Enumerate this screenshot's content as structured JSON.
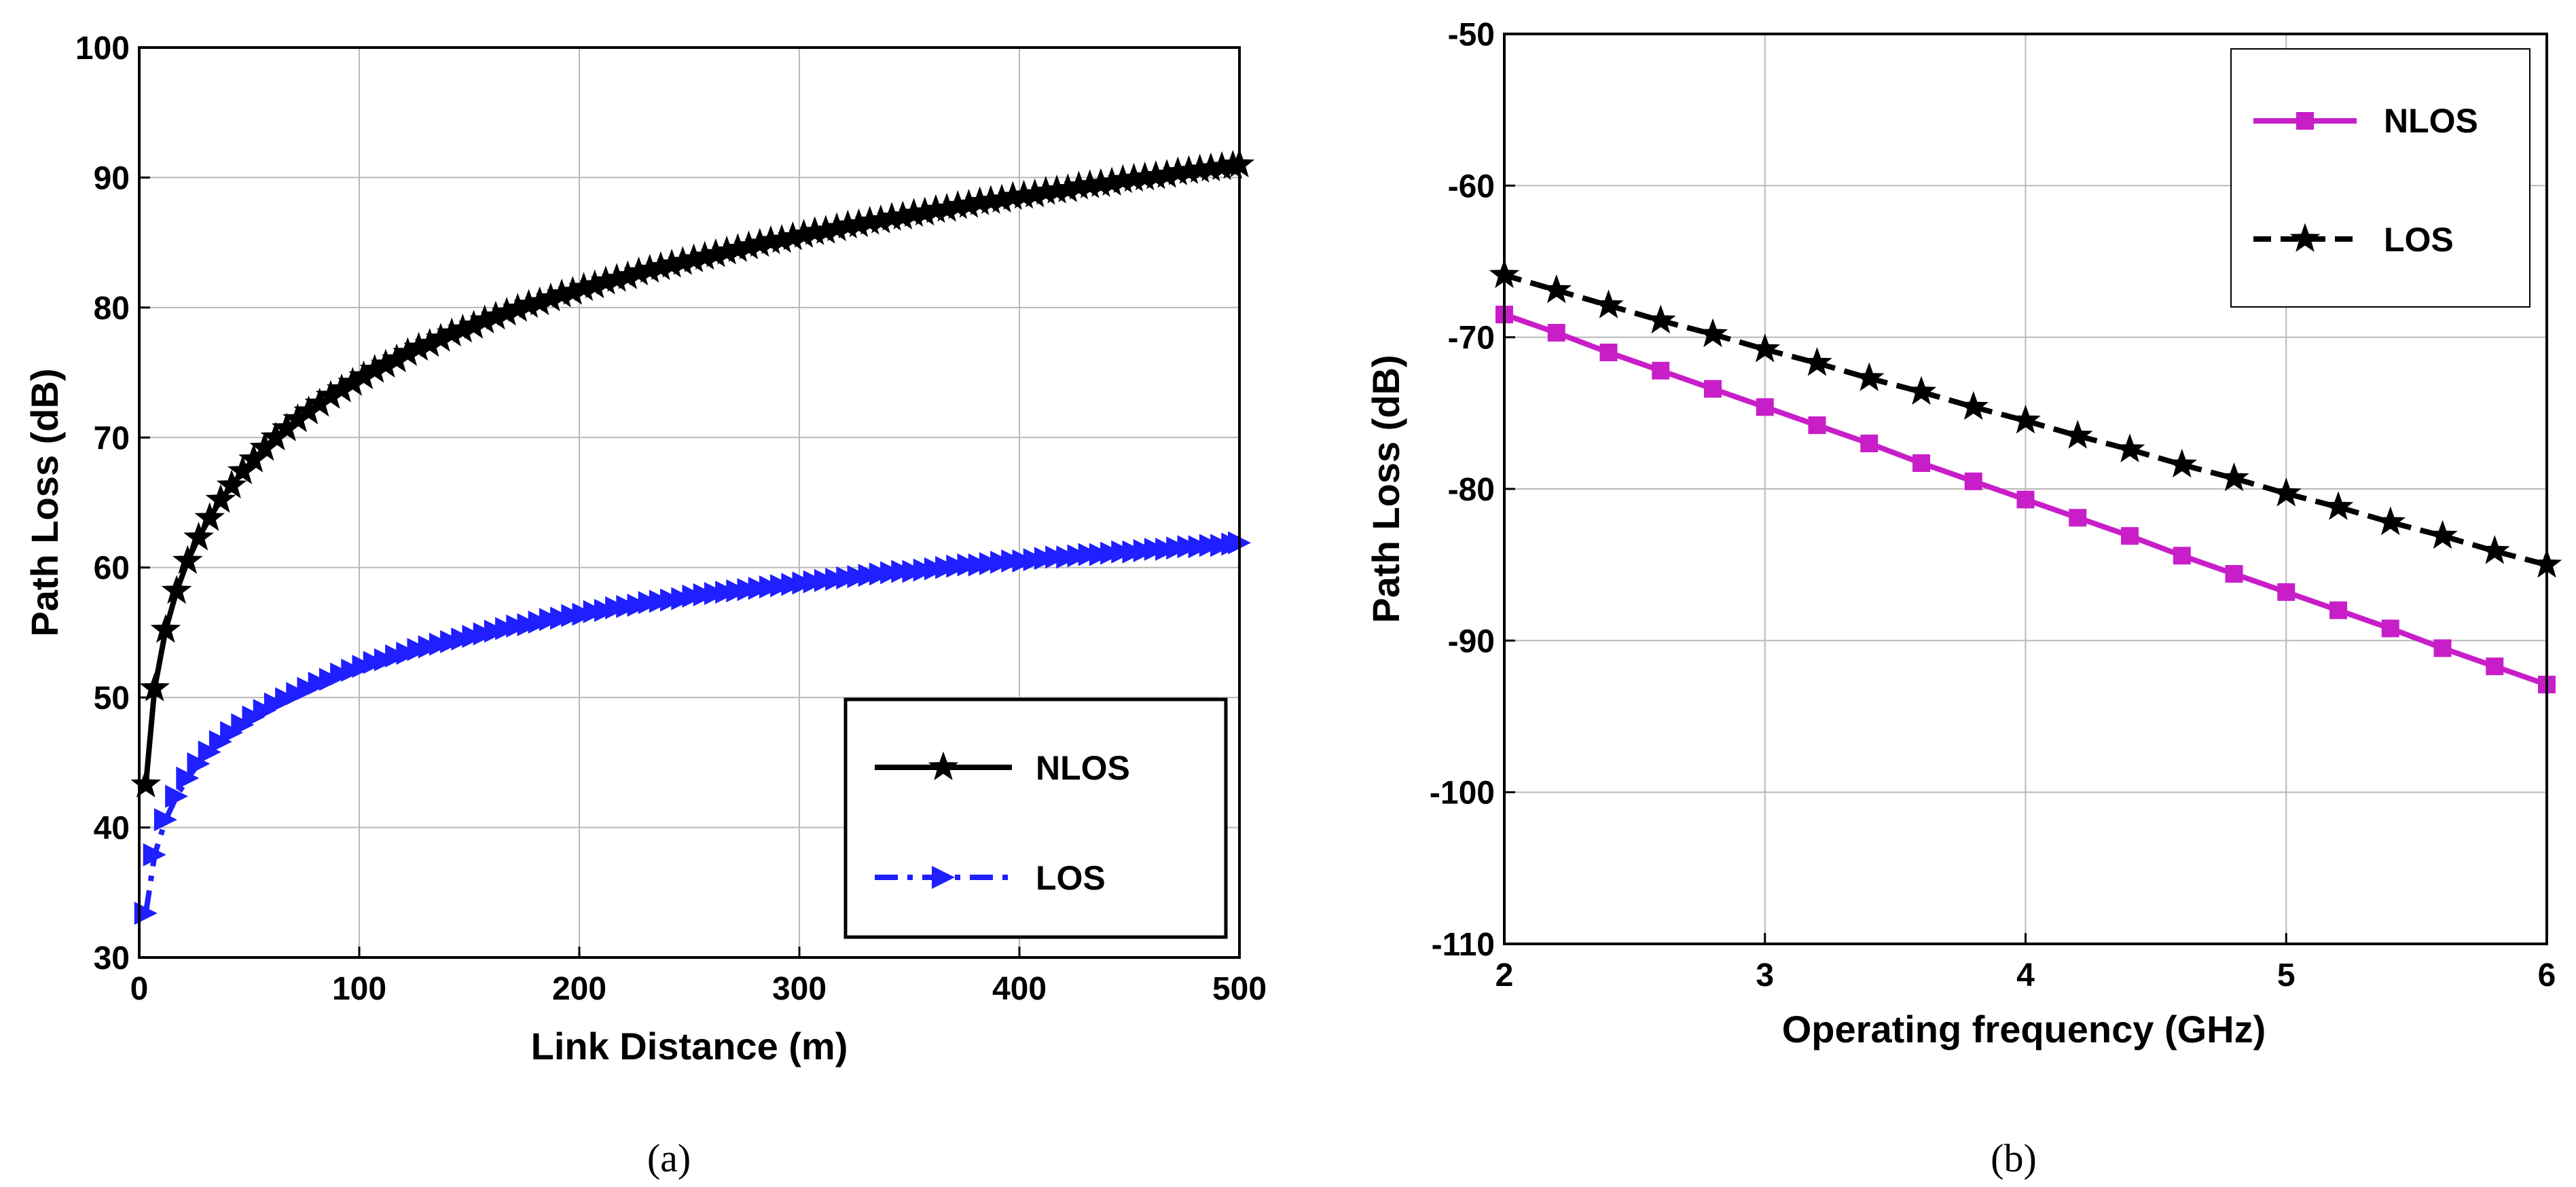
{
  "chart_data": [
    {
      "type": "line",
      "caption": "(a)",
      "xlabel": "Link Distance (m)",
      "ylabel": "Path Loss (dB)",
      "xlim": [
        0,
        500
      ],
      "ylim": [
        30,
        100
      ],
      "xticks": [
        "0",
        "100",
        "200",
        "300",
        "400",
        "500"
      ],
      "yticks": [
        "30",
        "40",
        "50",
        "60",
        "70",
        "80",
        "90",
        "100"
      ],
      "grid": true,
      "legend": {
        "position": "bottom-right",
        "entries": [
          "NLOS",
          "LOS"
        ]
      },
      "series": [
        {
          "name": "NLOS",
          "color": "#000000",
          "marker": "star",
          "line_style": "solid",
          "x": [
            3,
            7,
            12,
            17,
            22,
            27,
            32,
            37,
            42,
            47,
            52,
            57,
            62,
            67,
            72,
            77,
            82,
            87,
            92,
            97,
            102,
            107,
            112,
            117,
            122,
            127,
            132,
            137,
            142,
            147,
            152,
            157,
            162,
            167,
            172,
            177,
            182,
            187,
            192,
            197,
            202,
            207,
            212,
            217,
            222,
            227,
            232,
            237,
            242,
            247,
            252,
            257,
            262,
            267,
            272,
            277,
            282,
            287,
            292,
            297,
            302,
            307,
            312,
            317,
            322,
            327,
            332,
            337,
            342,
            347,
            352,
            357,
            362,
            367,
            372,
            377,
            382,
            387,
            392,
            397,
            402,
            407,
            412,
            417,
            422,
            427,
            432,
            437,
            442,
            447,
            452,
            457,
            462,
            467,
            472,
            477,
            482,
            487,
            492,
            497,
            500
          ],
          "y": [
            43.3,
            50.7,
            55.2,
            58.2,
            60.5,
            62.3,
            63.8,
            65.2,
            66.3,
            67.4,
            68.3,
            69.2,
            70.0,
            70.7,
            71.4,
            72.0,
            72.6,
            73.2,
            73.7,
            74.2,
            74.7,
            75.2,
            75.6,
            76.0,
            76.5,
            76.9,
            77.2,
            77.6,
            78.0,
            78.3,
            78.6,
            79.0,
            79.3,
            79.6,
            79.9,
            80.2,
            80.4,
            80.7,
            81.0,
            81.2,
            81.5,
            81.7,
            82.0,
            82.2,
            82.4,
            82.7,
            82.9,
            83.1,
            83.3,
            83.5,
            83.7,
            83.9,
            84.1,
            84.3,
            84.5,
            84.7,
            84.9,
            85.1,
            85.2,
            85.4,
            85.6,
            85.8,
            85.9,
            86.1,
            86.3,
            86.4,
            86.6,
            86.7,
            86.9,
            87.0,
            87.2,
            87.3,
            87.5,
            87.6,
            87.8,
            87.9,
            88.1,
            88.2,
            88.3,
            88.5,
            88.6,
            88.7,
            88.9,
            89.0,
            89.1,
            89.3,
            89.4,
            89.5,
            89.6,
            89.8,
            89.9,
            90.0,
            90.1,
            90.2,
            90.4,
            90.5,
            90.6,
            90.7,
            90.8,
            90.9,
            91.0
          ]
        },
        {
          "name": "LOS",
          "color": "#1f1fff",
          "marker": "triangle-right",
          "line_style": "dash-dot",
          "x": [
            3,
            7,
            12,
            17,
            22,
            27,
            32,
            37,
            42,
            47,
            52,
            57,
            62,
            67,
            72,
            77,
            82,
            87,
            92,
            97,
            102,
            107,
            112,
            117,
            122,
            127,
            132,
            137,
            142,
            147,
            152,
            157,
            162,
            167,
            172,
            177,
            182,
            187,
            192,
            197,
            202,
            207,
            212,
            217,
            222,
            227,
            232,
            237,
            242,
            247,
            252,
            257,
            262,
            267,
            272,
            277,
            282,
            287,
            292,
            297,
            302,
            307,
            312,
            317,
            322,
            327,
            332,
            337,
            342,
            347,
            352,
            357,
            362,
            367,
            372,
            377,
            382,
            387,
            392,
            397,
            402,
            407,
            412,
            417,
            422,
            427,
            432,
            437,
            442,
            447,
            452,
            457,
            462,
            467,
            472,
            477,
            482,
            487,
            492,
            497,
            500
          ],
          "y": [
            33.4,
            37.9,
            40.6,
            42.4,
            43.8,
            44.9,
            45.8,
            46.6,
            47.3,
            47.9,
            48.5,
            49.0,
            49.5,
            49.9,
            50.3,
            50.7,
            51.1,
            51.4,
            51.8,
            52.1,
            52.4,
            52.7,
            52.9,
            53.2,
            53.4,
            53.7,
            53.9,
            54.1,
            54.3,
            54.5,
            54.7,
            54.9,
            55.1,
            55.3,
            55.5,
            55.6,
            55.8,
            56.0,
            56.1,
            56.3,
            56.4,
            56.6,
            56.7,
            56.9,
            57.0,
            57.1,
            57.3,
            57.4,
            57.5,
            57.6,
            57.8,
            57.9,
            58.0,
            58.1,
            58.2,
            58.3,
            58.4,
            58.5,
            58.6,
            58.7,
            58.8,
            58.9,
            59.0,
            59.1,
            59.2,
            59.3,
            59.4,
            59.5,
            59.6,
            59.7,
            59.7,
            59.8,
            59.9,
            60.0,
            60.1,
            60.2,
            60.2,
            60.3,
            60.4,
            60.5,
            60.5,
            60.6,
            60.7,
            60.8,
            60.8,
            60.9,
            61.0,
            61.0,
            61.1,
            61.2,
            61.2,
            61.3,
            61.4,
            61.4,
            61.5,
            61.6,
            61.6,
            61.7,
            61.7,
            61.8,
            61.9
          ]
        }
      ]
    },
    {
      "type": "line",
      "caption": "(b)",
      "xlabel": "Operating frequency (GHz)",
      "ylabel": "Path Loss (dB)",
      "xlim": [
        2,
        6
      ],
      "ylim": [
        -110,
        -50
      ],
      "xticks": [
        "2",
        "3",
        "4",
        "5",
        "6"
      ],
      "yticks": [
        "-110",
        "-100",
        "-90",
        "-80",
        "-70",
        "-60",
        "-50"
      ],
      "grid": true,
      "legend": {
        "position": "top-right",
        "entries": [
          "NLOS",
          "LOS"
        ]
      },
      "series": [
        {
          "name": "NLOS",
          "color": "#c81ec8",
          "marker": "square",
          "line_style": "solid",
          "x": [
            2.0,
            2.2,
            2.4,
            2.6,
            2.8,
            3.0,
            3.2,
            3.4,
            3.6,
            3.8,
            4.0,
            4.2,
            4.4,
            4.6,
            4.8,
            5.0,
            5.2,
            5.4,
            5.6,
            5.8,
            6.0
          ],
          "y": [
            -68.5,
            -69.7,
            -71.0,
            -72.2,
            -73.4,
            -74.6,
            -75.8,
            -77.0,
            -78.3,
            -79.5,
            -80.7,
            -81.9,
            -83.1,
            -84.4,
            -85.6,
            -86.8,
            -88.0,
            -89.2,
            -90.5,
            -91.7,
            -92.9
          ]
        },
        {
          "name": "LOS",
          "color": "#000000",
          "marker": "star",
          "line_style": "dashed",
          "x": [
            2.0,
            2.2,
            2.4,
            2.6,
            2.8,
            3.0,
            3.2,
            3.4,
            3.6,
            3.8,
            4.0,
            4.2,
            4.4,
            4.6,
            4.8,
            5.0,
            5.2,
            5.4,
            5.6,
            5.8,
            6.0
          ],
          "y": [
            -65.9,
            -66.9,
            -67.9,
            -68.9,
            -69.8,
            -70.8,
            -71.7,
            -72.7,
            -73.6,
            -74.6,
            -75.5,
            -76.5,
            -77.4,
            -78.4,
            -79.3,
            -80.3,
            -81.2,
            -82.2,
            -83.1,
            -84.1,
            -85.0
          ]
        }
      ]
    }
  ]
}
